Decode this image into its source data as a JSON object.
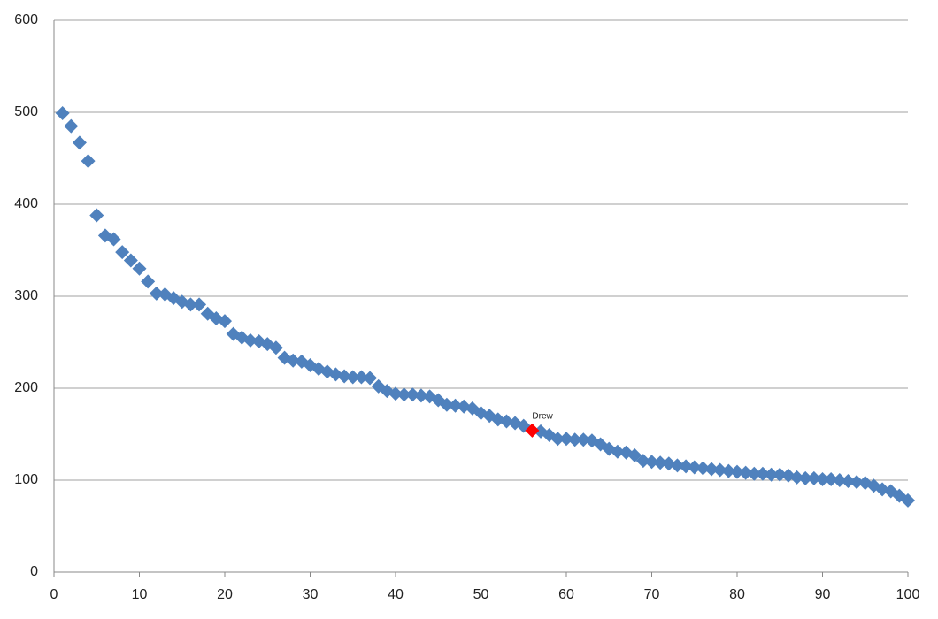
{
  "chart_data": {
    "type": "scatter",
    "xlim": [
      0,
      100
    ],
    "xticks": [
      0,
      10,
      20,
      30,
      40,
      50,
      60,
      70,
      80,
      90,
      100
    ],
    "ylim": [
      0,
      600
    ],
    "yticks": [
      0,
      100,
      200,
      300,
      400,
      500,
      600
    ],
    "grid": true,
    "series": [
      {
        "color": "#4f81bd",
        "x": [
          1,
          2,
          3,
          4,
          5,
          6,
          7,
          8,
          9,
          10,
          11,
          12,
          13,
          14,
          15,
          16,
          17,
          18,
          19,
          20,
          21,
          22,
          23,
          24,
          25,
          26,
          27,
          28,
          29,
          30,
          31,
          32,
          33,
          34,
          35,
          36,
          37,
          38,
          39,
          40,
          41,
          42,
          43,
          44,
          45,
          46,
          47,
          48,
          49,
          50,
          51,
          52,
          53,
          54,
          55,
          57,
          58,
          59,
          60,
          61,
          62,
          63,
          64,
          65,
          66,
          67,
          68,
          69,
          70,
          71,
          72,
          73,
          74,
          75,
          76,
          77,
          78,
          79,
          80,
          81,
          82,
          83,
          84,
          85,
          86,
          87,
          88,
          89,
          90,
          91,
          92,
          93,
          94,
          95,
          96,
          97,
          98,
          99,
          100
        ],
        "values": [
          499,
          485,
          467,
          447,
          388,
          366,
          362,
          348,
          339,
          330,
          316,
          303,
          302,
          298,
          294,
          291,
          291,
          281,
          276,
          273,
          259,
          255,
          252,
          251,
          248,
          244,
          233,
          230,
          229,
          225,
          221,
          218,
          215,
          213,
          212,
          212,
          211,
          202,
          197,
          194,
          193,
          193,
          192,
          191,
          187,
          182,
          181,
          180,
          178,
          173,
          170,
          166,
          164,
          162,
          159,
          153,
          149,
          145,
          145,
          144,
          144,
          143,
          139,
          134,
          131,
          130,
          127,
          121,
          120,
          119,
          118,
          116,
          115,
          114,
          113,
          112,
          111,
          110,
          109,
          108,
          107,
          107,
          106,
          106,
          105,
          103,
          102,
          102,
          101,
          101,
          100,
          99,
          98,
          97,
          94,
          90,
          88,
          83,
          78
        ]
      },
      {
        "color": "#ff0000",
        "label": "Drew",
        "x": [
          56
        ],
        "values": [
          154
        ]
      }
    ]
  }
}
